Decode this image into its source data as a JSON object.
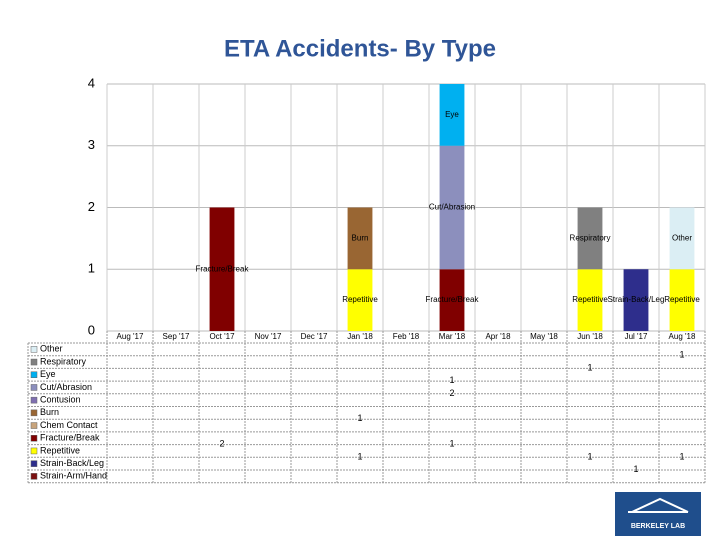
{
  "chart_data": {
    "type": "bar",
    "stacked": true,
    "title": "ETA Accidents- By Type",
    "categories": [
      "Aug '17",
      "Sep '17",
      "Oct '17",
      "Nov '17",
      "Dec '17",
      "Jan '18",
      "Feb '18",
      "Mar '18",
      "Apr '18",
      "May '18",
      "Jun '18",
      "Jul '17",
      "Aug '18"
    ],
    "ylim": [
      0,
      4
    ],
    "yticks": [
      0,
      1,
      2,
      3,
      4
    ],
    "grid": true,
    "series": [
      {
        "name": "Other",
        "color": "#dbeef4",
        "values": [
          null,
          null,
          null,
          null,
          null,
          null,
          null,
          null,
          null,
          null,
          null,
          null,
          1
        ]
      },
      {
        "name": "Respiratory",
        "color": "#808080",
        "values": [
          null,
          null,
          null,
          null,
          null,
          null,
          null,
          null,
          null,
          null,
          1,
          null,
          null
        ]
      },
      {
        "name": "Eye",
        "color": "#00b0f0",
        "values": [
          null,
          null,
          null,
          null,
          null,
          null,
          null,
          1,
          null,
          null,
          null,
          null,
          null
        ]
      },
      {
        "name": "Cut/Abrasion",
        "color": "#8c8fbd",
        "values": [
          null,
          null,
          null,
          null,
          null,
          null,
          null,
          2,
          null,
          null,
          null,
          null,
          null
        ]
      },
      {
        "name": "Contusion",
        "color": "#7f6fb0",
        "values": [
          null,
          null,
          null,
          null,
          null,
          null,
          null,
          null,
          null,
          null,
          null,
          null,
          null
        ]
      },
      {
        "name": "Burn",
        "color": "#996633",
        "values": [
          null,
          null,
          null,
          null,
          null,
          1,
          null,
          null,
          null,
          null,
          null,
          null,
          null
        ]
      },
      {
        "name": "Chem Contact",
        "color": "#c8a47c",
        "values": [
          null,
          null,
          null,
          null,
          null,
          null,
          null,
          null,
          null,
          null,
          null,
          null,
          null
        ]
      },
      {
        "name": "Fracture/Break",
        "color": "#800000",
        "values": [
          null,
          null,
          2,
          null,
          null,
          null,
          null,
          1,
          null,
          null,
          null,
          null,
          null
        ]
      },
      {
        "name": "Repetitive",
        "color": "#ffff00",
        "values": [
          null,
          null,
          null,
          null,
          null,
          1,
          null,
          null,
          null,
          null,
          1,
          null,
          1
        ]
      },
      {
        "name": "Strain-Back/Leg",
        "color": "#2e2e8c",
        "values": [
          null,
          null,
          null,
          null,
          null,
          null,
          null,
          null,
          null,
          null,
          null,
          1,
          null
        ]
      },
      {
        "name": "Strain-Arm/Hand",
        "color": "#7a1010",
        "values": [
          null,
          null,
          null,
          null,
          null,
          null,
          null,
          null,
          null,
          null,
          null,
          null,
          null
        ]
      }
    ]
  },
  "logo": "BERKELEY LAB"
}
